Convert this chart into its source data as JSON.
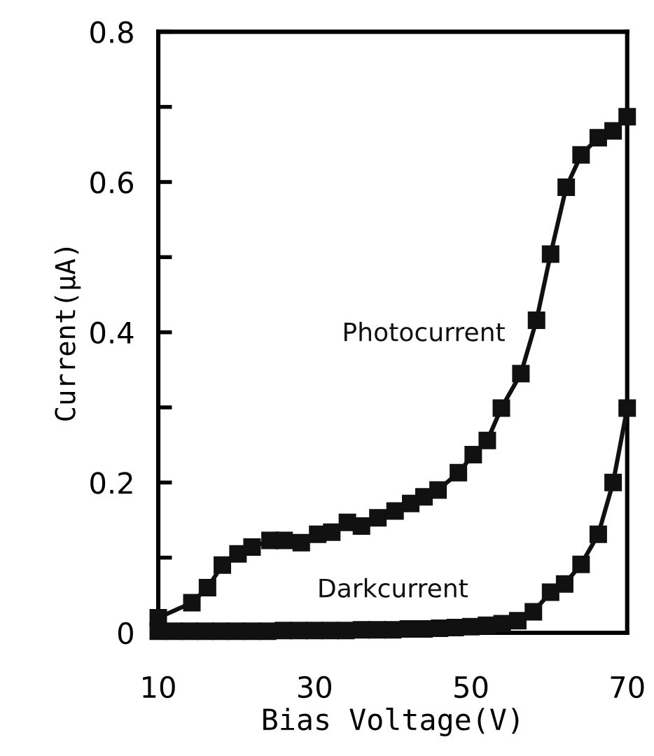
{
  "chart_data": {
    "type": "line",
    "xlabel": "Bias Voltage(V)",
    "ylabel": "Current(μA)",
    "xlim": [
      10,
      70
    ],
    "xticks": [
      10,
      30,
      50,
      70
    ],
    "ylim": [
      0,
      0.8
    ],
    "yticks": [
      0,
      {
        "value": 0.1,
        "label": null
      },
      0.2,
      {
        "value": 0.3,
        "label": null
      },
      0.4,
      {
        "value": 0.5,
        "label": null
      },
      0.6,
      {
        "value": 0.7,
        "label": null
      },
      0.8
    ],
    "marker": "square",
    "line_style": "solid",
    "grid": false,
    "legend": false,
    "series": [
      {
        "name": "Photocurrent",
        "color": "#111111",
        "x": [
          10,
          14.3,
          16.3,
          18.2,
          20.2,
          22,
          24.3,
          26.1,
          28.3,
          30.4,
          32.2,
          34.2,
          36,
          38.1,
          40.3,
          42.3,
          44,
          45.8,
          48.4,
          50.3,
          52.1,
          53.9,
          56.4,
          58.4,
          60.2,
          62.2,
          64.1,
          66.3,
          68.2,
          70
        ],
        "values": [
          0.02,
          0.04,
          0.06,
          0.09,
          0.105,
          0.114,
          0.123,
          0.123,
          0.12,
          0.131,
          0.134,
          0.147,
          0.142,
          0.153,
          0.162,
          0.172,
          0.181,
          0.19,
          0.213,
          0.237,
          0.256,
          0.299,
          0.345,
          0.416,
          0.504,
          0.593,
          0.636,
          0.659,
          0.668,
          0.687
        ]
      },
      {
        "name": "Darkcurrent",
        "color": "#111111",
        "x": [
          10,
          12,
          14,
          16,
          18,
          20,
          22,
          24,
          26,
          28,
          30,
          32,
          34,
          36,
          38,
          40,
          42,
          44,
          46,
          48,
          50,
          52,
          54,
          56,
          58,
          60.2,
          62,
          64.1,
          66.3,
          68.2,
          70
        ],
        "values": [
          0.002,
          0.002,
          0.002,
          0.002,
          0.002,
          0.002,
          0.002,
          0.002,
          0.003,
          0.003,
          0.003,
          0.003,
          0.003,
          0.004,
          0.004,
          0.004,
          0.005,
          0.005,
          0.006,
          0.007,
          0.008,
          0.01,
          0.012,
          0.016,
          0.028,
          0.054,
          0.065,
          0.091,
          0.131,
          0.2,
          0.299
        ]
      }
    ]
  }
}
